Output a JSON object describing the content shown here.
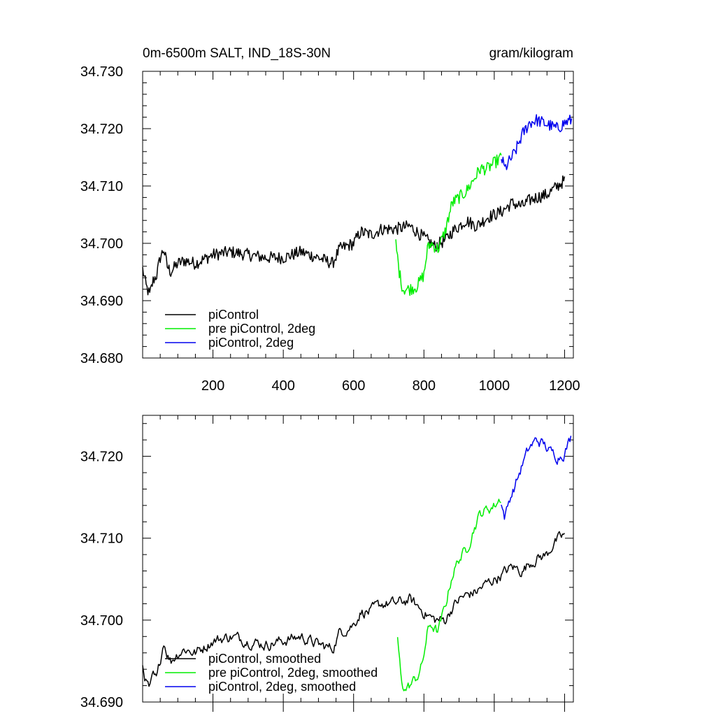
{
  "colors": {
    "piControl": "#000000",
    "pre_piControl_2deg": "#00ee00",
    "piControl_2deg": "#0000ee"
  },
  "chart_data": [
    {
      "type": "line",
      "title": "0m-6500m SALT, IND_18S-30N",
      "units": "gram/kilogram",
      "xlim": [
        0,
        1225
      ],
      "ylim": [
        34.68,
        34.73
      ],
      "x_tick_labels": [
        "200",
        "400",
        "600",
        "800",
        "1000",
        "1200"
      ],
      "y_tick_labels": [
        "34.680",
        "34.690",
        "34.700",
        "34.710",
        "34.720",
        "34.730"
      ],
      "grid": false,
      "legend_position": "bottom-left",
      "series": [
        {
          "name": "piControl",
          "color": "#000000",
          "points": [
            [
              0,
              34.6955
            ],
            [
              10,
              34.6925
            ],
            [
              20,
              34.691
            ],
            [
              30,
              34.6935
            ],
            [
              40,
              34.6945
            ],
            [
              50,
              34.6975
            ],
            [
              60,
              34.699
            ],
            [
              70,
              34.696
            ],
            [
              80,
              34.695
            ],
            [
              100,
              34.6965
            ],
            [
              120,
              34.697
            ],
            [
              150,
              34.6965
            ],
            [
              200,
              34.698
            ],
            [
              250,
              34.6985
            ],
            [
              300,
              34.698
            ],
            [
              350,
              34.6975
            ],
            [
              400,
              34.6975
            ],
            [
              450,
              34.6985
            ],
            [
              500,
              34.6975
            ],
            [
              540,
              34.6965
            ],
            [
              560,
              34.699
            ],
            [
              600,
              34.7
            ],
            [
              620,
              34.702
            ],
            [
              650,
              34.7015
            ],
            [
              680,
              34.7025
            ],
            [
              720,
              34.7025
            ],
            [
              760,
              34.703
            ],
            [
              800,
              34.701
            ],
            [
              830,
              34.6995
            ],
            [
              860,
              34.7005
            ],
            [
              880,
              34.702
            ],
            [
              900,
              34.703
            ],
            [
              920,
              34.704
            ],
            [
              950,
              34.703
            ],
            [
              980,
              34.7045
            ],
            [
              1000,
              34.705
            ],
            [
              1020,
              34.7055
            ],
            [
              1050,
              34.707
            ],
            [
              1080,
              34.7065
            ],
            [
              1100,
              34.7075
            ],
            [
              1120,
              34.708
            ],
            [
              1150,
              34.7085
            ],
            [
              1170,
              34.7095
            ],
            [
              1190,
              34.7105
            ],
            [
              1200,
              34.711
            ]
          ]
        },
        {
          "name": "pre piControl, 2deg",
          "color": "#00ee00",
          "points": [
            [
              720,
              34.7
            ],
            [
              730,
              34.695
            ],
            [
              740,
              34.692
            ],
            [
              760,
              34.692
            ],
            [
              780,
              34.6925
            ],
            [
              800,
              34.6945
            ],
            [
              810,
              34.699
            ],
            [
              820,
              34.7
            ],
            [
              840,
              34.699
            ],
            [
              860,
              34.702
            ],
            [
              880,
              34.707
            ],
            [
              900,
              34.708
            ],
            [
              920,
              34.709
            ],
            [
              940,
              34.711
            ],
            [
              960,
              34.713
            ],
            [
              980,
              34.713
            ],
            [
              1000,
              34.714
            ],
            [
              1020,
              34.715
            ]
          ]
        },
        {
          "name": "piControl, 2deg",
          "color": "#0000ee",
          "points": [
            [
              1020,
              34.715
            ],
            [
              1030,
              34.713
            ],
            [
              1045,
              34.7145
            ],
            [
              1060,
              34.716
            ],
            [
              1080,
              34.719
            ],
            [
              1100,
              34.721
            ],
            [
              1120,
              34.7215
            ],
            [
              1140,
              34.721
            ],
            [
              1160,
              34.7205
            ],
            [
              1180,
              34.72
            ],
            [
              1200,
              34.721
            ],
            [
              1220,
              34.7215
            ]
          ]
        }
      ]
    },
    {
      "type": "line",
      "xlim": [
        0,
        1225
      ],
      "ylim": [
        34.69,
        34.725
      ],
      "y_tick_labels": [
        "34.690",
        "34.700",
        "34.710",
        "34.720"
      ],
      "grid": false,
      "legend_position": "bottom-left",
      "series": [
        {
          "name": "piControl, smoothed",
          "color": "#000000",
          "points": [
            [
              0,
              34.6945
            ],
            [
              10,
              34.6925
            ],
            [
              20,
              34.6915
            ],
            [
              30,
              34.693
            ],
            [
              40,
              34.6925
            ],
            [
              50,
              34.695
            ],
            [
              60,
              34.6975
            ],
            [
              70,
              34.696
            ],
            [
              80,
              34.695
            ],
            [
              100,
              34.696
            ],
            [
              120,
              34.6965
            ],
            [
              150,
              34.696
            ],
            [
              200,
              34.6975
            ],
            [
              250,
              34.698
            ],
            [
              300,
              34.6975
            ],
            [
              350,
              34.697
            ],
            [
              400,
              34.6975
            ],
            [
              450,
              34.698
            ],
            [
              500,
              34.697
            ],
            [
              540,
              34.6965
            ],
            [
              560,
              34.6985
            ],
            [
              600,
              34.6995
            ],
            [
              620,
              34.701
            ],
            [
              650,
              34.701
            ],
            [
              680,
              34.702
            ],
            [
              720,
              34.702
            ],
            [
              760,
              34.7025
            ],
            [
              800,
              34.701
            ],
            [
              830,
              34.7
            ],
            [
              860,
              34.7
            ],
            [
              880,
              34.7015
            ],
            [
              900,
              34.7025
            ],
            [
              920,
              34.703
            ],
            [
              950,
              34.7035
            ],
            [
              980,
              34.7045
            ],
            [
              1000,
              34.705
            ],
            [
              1020,
              34.7055
            ],
            [
              1050,
              34.7065
            ],
            [
              1080,
              34.706
            ],
            [
              1100,
              34.707
            ],
            [
              1120,
              34.7075
            ],
            [
              1150,
              34.708
            ],
            [
              1170,
              34.7095
            ],
            [
              1190,
              34.71
            ],
            [
              1200,
              34.7105
            ]
          ]
        },
        {
          "name": "pre piControl, 2deg, smoothed",
          "color": "#00ee00",
          "points": [
            [
              725,
              34.6975
            ],
            [
              735,
              34.693
            ],
            [
              745,
              34.6915
            ],
            [
              760,
              34.692
            ],
            [
              780,
              34.693
            ],
            [
              795,
              34.6945
            ],
            [
              810,
              34.6985
            ],
            [
              820,
              34.6995
            ],
            [
              840,
              34.6985
            ],
            [
              860,
              34.7015
            ],
            [
              880,
              34.7055
            ],
            [
              900,
              34.7075
            ],
            [
              920,
              34.7085
            ],
            [
              940,
              34.711
            ],
            [
              960,
              34.713
            ],
            [
              980,
              34.7135
            ],
            [
              1000,
              34.714
            ],
            [
              1020,
              34.715
            ]
          ]
        },
        {
          "name": "piControl, 2deg, smoothed",
          "color": "#0000ee",
          "points": [
            [
              1020,
              34.714
            ],
            [
              1030,
              34.7125
            ],
            [
              1045,
              34.715
            ],
            [
              1060,
              34.7165
            ],
            [
              1080,
              34.719
            ],
            [
              1100,
              34.721
            ],
            [
              1120,
              34.722
            ],
            [
              1140,
              34.7215
            ],
            [
              1160,
              34.7205
            ],
            [
              1180,
              34.72
            ],
            [
              1200,
              34.7205
            ],
            [
              1220,
              34.7225
            ]
          ]
        }
      ]
    }
  ]
}
